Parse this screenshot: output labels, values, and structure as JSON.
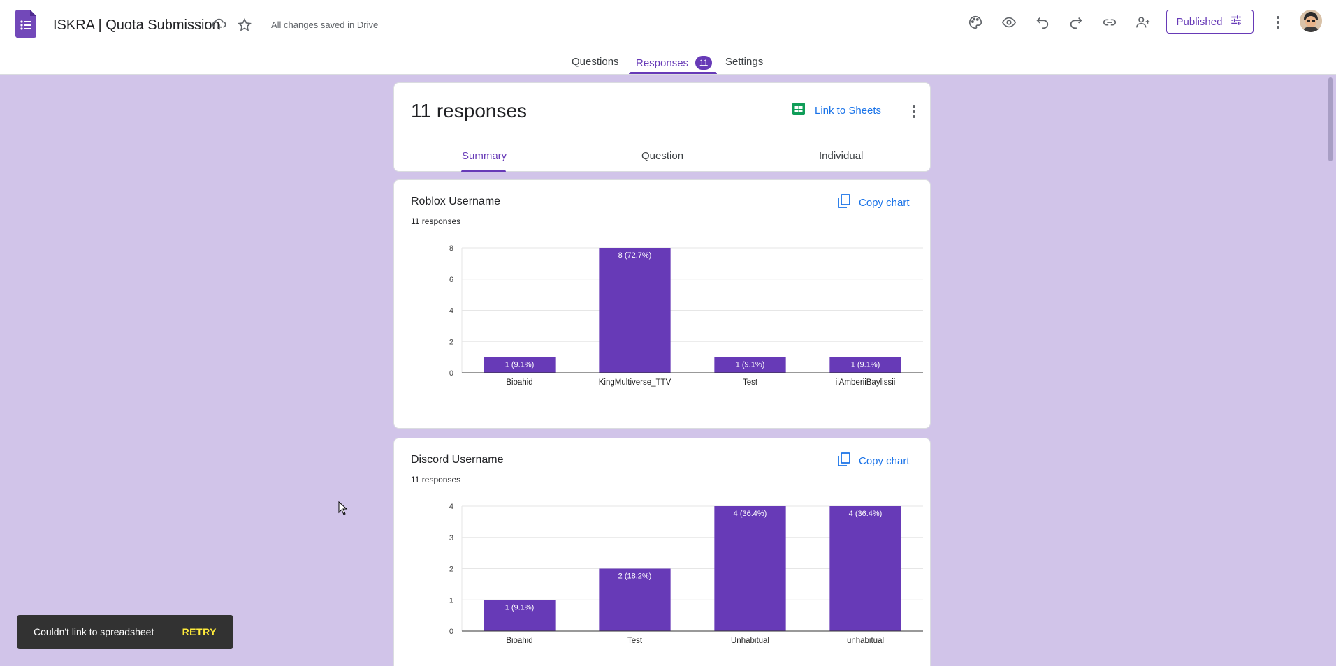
{
  "header": {
    "title": "ISKRA | Quota Submission",
    "save_status": "All changes saved in Drive",
    "publish_label": "Published",
    "icons": [
      "forms-logo-icon",
      "move-to-folder-icon",
      "star-icon",
      "palette-icon",
      "preview-eye-icon",
      "undo-icon",
      "redo-icon",
      "link-icon",
      "add-collaborator-icon",
      "tune-icon",
      "more-vert-icon",
      "avatar"
    ]
  },
  "tabs": [
    {
      "label": "Questions"
    },
    {
      "label": "Responses",
      "badge": "11"
    },
    {
      "label": "Settings"
    }
  ],
  "summary": {
    "count_label": "11 responses",
    "link_sheets_label": "Link to Sheets",
    "subtabs": [
      {
        "label": "Summary"
      },
      {
        "label": "Question"
      },
      {
        "label": "Individual"
      }
    ]
  },
  "questions": [
    {
      "title": "Roblox Username",
      "subtitle": "11 responses",
      "copy_label": "Copy chart"
    },
    {
      "title": "Discord Username",
      "subtitle": "11 responses",
      "copy_label": "Copy chart"
    }
  ],
  "chart_data": [
    {
      "type": "bar",
      "categories": [
        "Bioahid",
        "KingMultiverse_TTV",
        "Test",
        "iiAmberiiBaylissii"
      ],
      "values": [
        1,
        8,
        1,
        1
      ],
      "data_labels": [
        "1 (9.1%)",
        "8 (72.7%)",
        "1 (9.1%)",
        "1 (9.1%)"
      ],
      "yticks": [
        0,
        2,
        4,
        6,
        8
      ],
      "ylim": [
        0,
        8
      ],
      "grid": true,
      "bar_color": "#673ab7"
    },
    {
      "type": "bar",
      "categories": [
        "Bioahid",
        "Test",
        "Unhabitual",
        "unhabitual"
      ],
      "values": [
        1,
        2,
        4,
        4
      ],
      "data_labels": [
        "1 (9.1%)",
        "2 (18.2%)",
        "4 (36.4%)",
        "4 (36.4%)"
      ],
      "yticks": [
        0,
        1,
        2,
        3,
        4
      ],
      "ylim": [
        0,
        4
      ],
      "grid": true,
      "bar_color": "#673ab7"
    }
  ],
  "snackbar": {
    "message": "Couldn't link to spreadsheet",
    "action": "RETRY"
  },
  "colors": {
    "accent": "#673ab7",
    "link": "#1a73e8",
    "background": "#d1c4e9"
  }
}
